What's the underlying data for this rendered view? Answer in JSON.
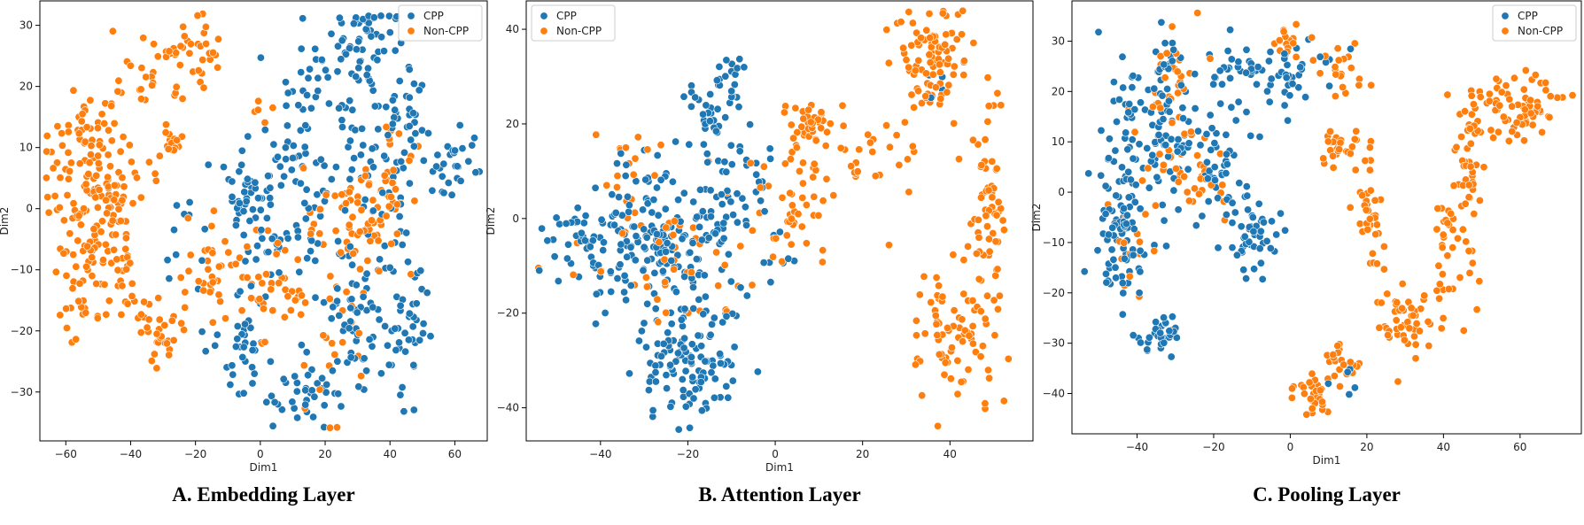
{
  "colors": {
    "cpp": "#1f77b4",
    "noncpp": "#ff7f0e"
  },
  "chart_data": [
    {
      "type": "scatter",
      "caption": "A. Embedding Layer",
      "xlabel": "Dim1",
      "ylabel": "Dim2",
      "xlim": [
        -68,
        70
      ],
      "ylim": [
        -38,
        34
      ],
      "xticks": [
        -60,
        -40,
        -20,
        0,
        20,
        40,
        60
      ],
      "yticks": [
        -30,
        -20,
        -10,
        0,
        10,
        20,
        30
      ],
      "xtick_labels": [
        "−60",
        "−40",
        "−20",
        "0",
        "20",
        "40",
        "60"
      ],
      "ytick_labels": [
        "−30",
        "−20",
        "−10",
        "0",
        "10",
        "20",
        "30"
      ],
      "legend": {
        "position": "top-right",
        "entries": [
          "CPP",
          "Non-CPP"
        ]
      },
      "series": [
        {
          "name": "CPP",
          "color": "#1f77b4",
          "clusters": [
            {
              "x": 25,
              "y": 22,
              "sx": 9,
              "sy": 5,
              "n": 60
            },
            {
              "x": 35,
              "y": 29,
              "sx": 5,
              "sy": 3,
              "n": 30
            },
            {
              "x": 42,
              "y": 15,
              "sx": 5,
              "sy": 4,
              "n": 30
            },
            {
              "x": 60,
              "y": 6,
              "sx": 4,
              "sy": 3,
              "n": 30
            },
            {
              "x": -5,
              "y": 3,
              "sx": 6,
              "sy": 4,
              "n": 40
            },
            {
              "x": 12,
              "y": 8,
              "sx": 6,
              "sy": 4,
              "n": 30
            },
            {
              "x": 8,
              "y": -2,
              "sx": 9,
              "sy": 6,
              "n": 50
            },
            {
              "x": -5,
              "y": -22,
              "sx": 5,
              "sy": 5,
              "n": 40
            },
            {
              "x": 15,
              "y": -30,
              "sx": 6,
              "sy": 3,
              "n": 40
            },
            {
              "x": 28,
              "y": -18,
              "sx": 5,
              "sy": 6,
              "n": 50
            },
            {
              "x": 44,
              "y": -18,
              "sx": 4,
              "sy": 7,
              "n": 50
            },
            {
              "x": 38,
              "y": 5,
              "sx": 6,
              "sy": 6,
              "n": 40
            },
            {
              "x": -25,
              "y": -5,
              "sx": 6,
              "sy": 6,
              "n": 10
            }
          ]
        },
        {
          "name": "Non-CPP",
          "color": "#ff7f0e",
          "clusters": [
            {
              "x": -50,
              "y": 5,
              "sx": 8,
              "sy": 9,
              "n": 160
            },
            {
              "x": -48,
              "y": -8,
              "sx": 7,
              "sy": 4,
              "n": 50
            },
            {
              "x": -30,
              "y": 24,
              "sx": 6,
              "sy": 3,
              "n": 25
            },
            {
              "x": -18,
              "y": 26,
              "sx": 3,
              "sy": 3,
              "n": 25
            },
            {
              "x": -27,
              "y": 11,
              "sx": 1.5,
              "sy": 1.5,
              "n": 15
            },
            {
              "x": -32,
              "y": -20,
              "sx": 4,
              "sy": 3,
              "n": 35
            },
            {
              "x": -15,
              "y": -10,
              "sx": 6,
              "sy": 4,
              "n": 40
            },
            {
              "x": 5,
              "y": -13,
              "sx": 4,
              "sy": 4,
              "n": 30
            },
            {
              "x": 30,
              "y": -3,
              "sx": 7,
              "sy": 5,
              "n": 60
            },
            {
              "x": 40,
              "y": 5,
              "sx": 4,
              "sy": 5,
              "n": 30
            },
            {
              "x": 22,
              "y": -22,
              "sx": 6,
              "sy": 8,
              "n": 25
            },
            {
              "x": -58,
              "y": -15,
              "sx": 3,
              "sy": 3,
              "n": 10
            },
            {
              "x": 0,
              "y": 16,
              "sx": 1.5,
              "sy": 1.5,
              "n": 5
            }
          ]
        }
      ]
    },
    {
      "type": "scatter",
      "caption": "B. Attention Layer",
      "xlabel": "Dim1",
      "ylabel": "Dim2",
      "xlim": [
        -57,
        59
      ],
      "ylim": [
        -47,
        46
      ],
      "xticks": [
        -40,
        -20,
        0,
        20,
        40
      ],
      "yticks": [
        -40,
        -20,
        0,
        20,
        40
      ],
      "xtick_labels": [
        "−40",
        "−20",
        "0",
        "20",
        "40"
      ],
      "ytick_labels": [
        "−40",
        "−20",
        "0",
        "20",
        "40"
      ],
      "legend": {
        "position": "top-left",
        "entries": [
          "CPP",
          "Non-CPP"
        ]
      },
      "series": [
        {
          "name": "CPP",
          "color": "#1f77b4",
          "clusters": [
            {
              "x": -25,
              "y": -5,
              "sx": 11,
              "sy": 9,
              "n": 220
            },
            {
              "x": -20,
              "y": -32,
              "sx": 5,
              "sy": 6,
              "n": 110
            },
            {
              "x": -15,
              "y": 22,
              "sx": 4,
              "sy": 4,
              "n": 30
            },
            {
              "x": -10,
              "y": 30,
              "sx": 2,
              "sy": 3,
              "n": 15
            },
            {
              "x": -45,
              "y": -3,
              "sx": 4,
              "sy": 4,
              "n": 30
            },
            {
              "x": -8,
              "y": 6,
              "sx": 5,
              "sy": 5,
              "n": 30
            },
            {
              "x": 38,
              "y": 28,
              "sx": 2,
              "sy": 3,
              "n": 5
            }
          ]
        },
        {
          "name": "Non-CPP",
          "color": "#ff7f0e",
          "clusters": [
            {
              "x": 8,
              "y": 20,
              "sx": 3,
              "sy": 2,
              "n": 40
            },
            {
              "x": 5,
              "y": 3,
              "sx": 4,
              "sy": 6,
              "n": 40
            },
            {
              "x": 20,
              "y": 12,
              "sx": 9,
              "sy": 4,
              "n": 35
            },
            {
              "x": 37,
              "y": 33,
              "sx": 4,
              "sy": 6,
              "n": 90
            },
            {
              "x": 49,
              "y": 0,
              "sx": 2,
              "sy": 8,
              "n": 55
            },
            {
              "x": 41,
              "y": -25,
              "sx": 5,
              "sy": 7,
              "n": 80
            },
            {
              "x": -25,
              "y": -8,
              "sx": 10,
              "sy": 10,
              "n": 50
            },
            {
              "x": -35,
              "y": 10,
              "sx": 4,
              "sy": 4,
              "n": 15
            },
            {
              "x": 50,
              "y": 24,
              "sx": 1,
              "sy": 3,
              "n": 5
            }
          ]
        }
      ]
    },
    {
      "type": "scatter",
      "caption": "C. Pooling Layer",
      "xlabel": "Dim1",
      "ylabel": "Dim2",
      "xlim": [
        -57,
        76
      ],
      "ylim": [
        -48,
        38
      ],
      "xticks": [
        -40,
        -20,
        0,
        20,
        40,
        60
      ],
      "yticks": [
        -40,
        -30,
        -20,
        -10,
        0,
        10,
        20,
        30
      ],
      "xtick_labels": [
        "−40",
        "−20",
        "0",
        "20",
        "40",
        "60"
      ],
      "ytick_labels": [
        "−40",
        "−30",
        "−20",
        "−10",
        "0",
        "10",
        "20",
        "30"
      ],
      "legend": {
        "position": "top-right",
        "entries": [
          "CPP",
          "Non-CPP"
        ]
      },
      "series": [
        {
          "name": "CPP",
          "color": "#1f77b4",
          "clusters": [
            {
              "x": -35,
              "y": 12,
              "sx": 6,
              "sy": 8,
              "n": 100
            },
            {
              "x": -44,
              "y": -8,
              "sx": 4,
              "sy": 8,
              "n": 90
            },
            {
              "x": -34,
              "y": -28,
              "sx": 3,
              "sy": 2,
              "n": 35
            },
            {
              "x": -20,
              "y": 6,
              "sx": 5,
              "sy": 6,
              "n": 40
            },
            {
              "x": -10,
              "y": -8,
              "sx": 4,
              "sy": 5,
              "n": 50
            },
            {
              "x": 0,
              "y": 24,
              "sx": 6,
              "sy": 3,
              "n": 40
            },
            {
              "x": -15,
              "y": 24,
              "sx": 5,
              "sy": 3,
              "n": 25
            },
            {
              "x": 14,
              "y": -37,
              "sx": 2,
              "sy": 2,
              "n": 5
            },
            {
              "x": -32,
              "y": 27,
              "sx": 2,
              "sy": 2,
              "n": 10
            }
          ]
        },
        {
          "name": "Non-CPP",
          "color": "#ff7f0e",
          "clusters": [
            {
              "x": -30,
              "y": 10,
              "sx": 6,
              "sy": 10,
              "n": 40
            },
            {
              "x": -30,
              "y": 26,
              "sx": 2,
              "sy": 3,
              "n": 15
            },
            {
              "x": -24,
              "y": 1,
              "sx": 4,
              "sy": 3,
              "n": 15
            },
            {
              "x": 0,
              "y": 30,
              "sx": 2,
              "sy": 2,
              "n": 15
            },
            {
              "x": 12,
              "y": 24,
              "sx": 3,
              "sy": 3,
              "n": 20
            },
            {
              "x": 13,
              "y": 9,
              "sx": 3,
              "sy": 2,
              "n": 25
            },
            {
              "x": 21,
              "y": -5,
              "sx": 1.5,
              "sy": 8,
              "n": 40
            },
            {
              "x": 30,
              "y": -26,
              "sx": 5,
              "sy": 4,
              "n": 50
            },
            {
              "x": 42,
              "y": -12,
              "sx": 3,
              "sy": 6,
              "n": 35
            },
            {
              "x": 46,
              "y": 5,
              "sx": 2,
              "sy": 6,
              "n": 35
            },
            {
              "x": 52,
              "y": 18,
              "sx": 4,
              "sy": 3,
              "n": 40
            },
            {
              "x": 64,
              "y": 18,
              "sx": 4,
              "sy": 3,
              "n": 40
            },
            {
              "x": 6,
              "y": -40,
              "sx": 3,
              "sy": 2,
              "n": 30
            },
            {
              "x": 13,
              "y": -34,
              "sx": 2,
              "sy": 2,
              "n": 20
            },
            {
              "x": -42,
              "y": -12,
              "sx": 4,
              "sy": 6,
              "n": 15
            }
          ]
        }
      ]
    }
  ]
}
